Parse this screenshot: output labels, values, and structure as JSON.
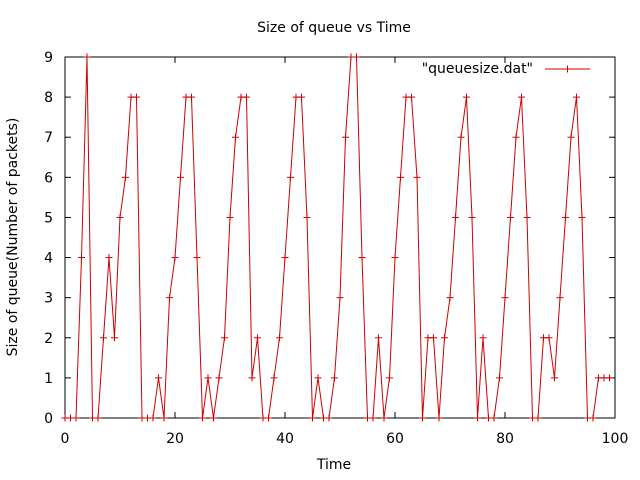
{
  "chart_data": {
    "type": "line",
    "title": "Size of queue vs Time",
    "xlabel": "Time",
    "ylabel": "Size of queue(Number of packets)",
    "xlim": [
      0,
      100
    ],
    "ylim": [
      0,
      9
    ],
    "xticks": [
      0,
      20,
      40,
      60,
      80,
      100
    ],
    "yticks": [
      0,
      1,
      2,
      3,
      4,
      5,
      6,
      7,
      8,
      9
    ],
    "grid": false,
    "legend_position": "top-right",
    "series": [
      {
        "name": "\"queuesize.dat\"",
        "color": "#cc0000",
        "x": [
          0,
          1,
          2,
          3,
          4,
          5,
          6,
          7,
          8,
          9,
          10,
          11,
          12,
          13,
          14,
          15,
          16,
          17,
          18,
          19,
          20,
          21,
          22,
          23,
          24,
          25,
          26,
          27,
          28,
          29,
          30,
          31,
          32,
          33,
          34,
          35,
          36,
          37,
          38,
          39,
          40,
          41,
          42,
          43,
          44,
          45,
          46,
          47,
          48,
          49,
          50,
          51,
          52,
          53,
          54,
          55,
          56,
          57,
          58,
          59,
          60,
          61,
          62,
          63,
          64,
          65,
          66,
          67,
          68,
          69,
          70,
          71,
          72,
          73,
          74,
          75,
          76,
          77,
          78,
          79,
          80,
          81,
          82,
          83,
          84,
          85,
          86,
          87,
          88,
          89,
          90,
          91,
          92,
          93,
          94,
          95,
          96,
          97,
          98,
          99
        ],
        "y": [
          0,
          0,
          0,
          4,
          9,
          0,
          0,
          2,
          4,
          2,
          5,
          6,
          8,
          8,
          0,
          0,
          0,
          1,
          0,
          3,
          4,
          6,
          8,
          8,
          4,
          0,
          1,
          0,
          1,
          2,
          5,
          7,
          8,
          8,
          1,
          2,
          0,
          0,
          1,
          2,
          4,
          6,
          8,
          8,
          5,
          0,
          1,
          0,
          0,
          1,
          3,
          7,
          9,
          9,
          4,
          0,
          0,
          2,
          0,
          1,
          4,
          6,
          8,
          8,
          6,
          0,
          2,
          2,
          0,
          2,
          3,
          5,
          7,
          8,
          5,
          0,
          2,
          0,
          0,
          1,
          3,
          5,
          7,
          8,
          5,
          0,
          0,
          2,
          2,
          1,
          3,
          5,
          7,
          8,
          5,
          0,
          0,
          1,
          1,
          1
        ]
      }
    ]
  }
}
